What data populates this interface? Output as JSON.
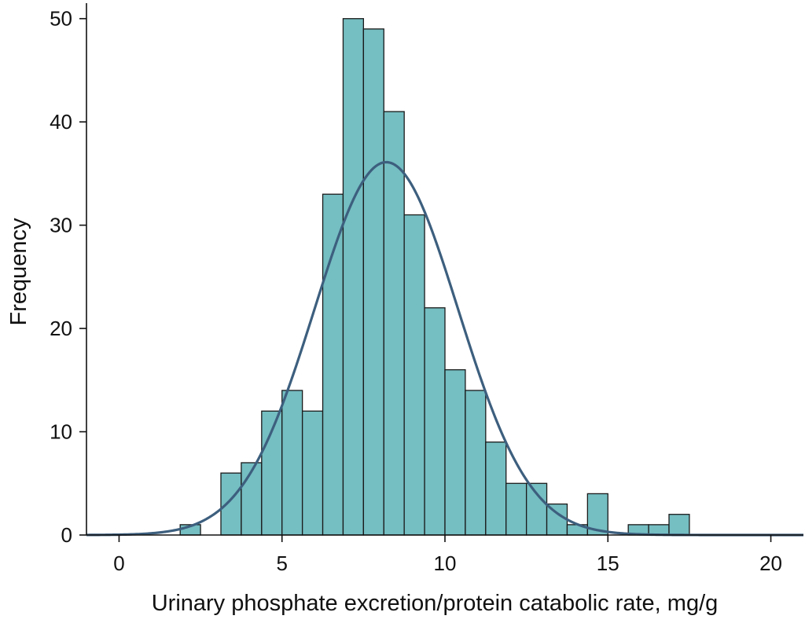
{
  "chart_data": {
    "type": "bar",
    "subtype": "histogram",
    "title": "",
    "xlabel": "Urinary phosphate excretion/protein catabolic rate, mg/g",
    "ylabel": "Frequency",
    "xlim": [
      -1,
      21
    ],
    "ylim": [
      0,
      51.5
    ],
    "xticks": [
      0,
      5,
      10,
      15,
      20
    ],
    "yticks": [
      0,
      10,
      20,
      30,
      40,
      50
    ],
    "grid": false,
    "bin_width": 0.625,
    "bins": [
      {
        "start": 1.875,
        "count": 1
      },
      {
        "start": 3.125,
        "count": 6
      },
      {
        "start": 3.75,
        "count": 7
      },
      {
        "start": 4.375,
        "count": 12
      },
      {
        "start": 5.0,
        "count": 14
      },
      {
        "start": 5.625,
        "count": 12
      },
      {
        "start": 6.25,
        "count": 33
      },
      {
        "start": 6.875,
        "count": 50
      },
      {
        "start": 7.5,
        "count": 49
      },
      {
        "start": 8.125,
        "count": 41
      },
      {
        "start": 8.75,
        "count": 31
      },
      {
        "start": 9.375,
        "count": 22
      },
      {
        "start": 10.0,
        "count": 16
      },
      {
        "start": 10.625,
        "count": 14
      },
      {
        "start": 11.25,
        "count": 9
      },
      {
        "start": 11.875,
        "count": 5
      },
      {
        "start": 12.5,
        "count": 5
      },
      {
        "start": 13.125,
        "count": 3
      },
      {
        "start": 13.75,
        "count": 1
      },
      {
        "start": 14.375,
        "count": 4
      },
      {
        "start": 15.625,
        "count": 1
      },
      {
        "start": 16.25,
        "count": 1
      },
      {
        "start": 16.875,
        "count": 2
      }
    ],
    "normal_curve": {
      "mean": 8.2,
      "sd": 2.2,
      "peak": 36.1
    },
    "colors": {
      "bar_fill": "#75BEC2",
      "bar_stroke": "#1A1A1A",
      "curve": "#3D5F7E",
      "axis": "#111111"
    }
  }
}
